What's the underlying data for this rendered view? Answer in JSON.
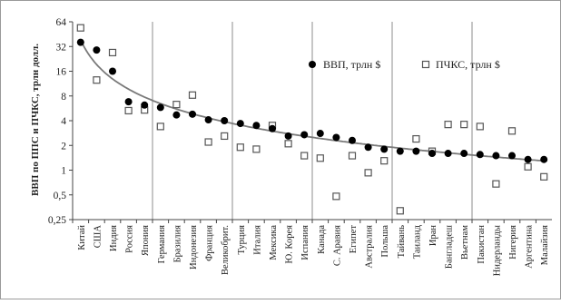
{
  "chart_data": {
    "type": "scatter",
    "ylabel": "ВВП по ППС и ПЧКС, трлн долл.",
    "y_scale": "log2",
    "ylim": [
      0.25,
      64
    ],
    "yticks": [
      0.25,
      0.5,
      1,
      2,
      4,
      8,
      16,
      32,
      64
    ],
    "ytick_labels": [
      "0,25",
      "0,5",
      "1",
      "2",
      "4",
      "8",
      "16",
      "32",
      "64"
    ],
    "grid": "vertical separators every 5 categories",
    "legend_position": "upper right",
    "categories": [
      "Китай",
      "США",
      "Индия",
      "Россия",
      "Япония",
      "Германия",
      "Бразилия",
      "Индонезия",
      "Франция",
      "Великобрит.",
      "Турция",
      "Италия",
      "Мексика",
      "Ю. Корея",
      "Испания",
      "Канада",
      "С. Аравия",
      "Египет",
      "Австралия",
      "Польша",
      "Тайвань",
      "Таиланд",
      "Иран",
      "Бангладеш",
      "Вьетнам",
      "Пакистан",
      "Нидерланды",
      "Нигерия",
      "Аргентина",
      "Малайзия"
    ],
    "series": [
      {
        "name": "ВВП, трлн $",
        "marker": "filled-circle",
        "color": "#000000",
        "values": [
          36,
          29,
          16,
          6.8,
          6.2,
          5.8,
          4.7,
          4.8,
          4.1,
          4.0,
          3.7,
          3.5,
          3.2,
          2.6,
          2.7,
          2.8,
          2.5,
          2.3,
          1.9,
          1.8,
          1.7,
          1.7,
          1.6,
          1.6,
          1.6,
          1.55,
          1.5,
          1.5,
          1.35,
          1.35
        ]
      },
      {
        "name": "ПЧКС, трлн $",
        "marker": "open-square",
        "color": "#555555",
        "values": [
          54,
          12.5,
          27,
          5.3,
          5.4,
          3.4,
          6.3,
          8.2,
          2.2,
          2.6,
          1.9,
          1.8,
          3.5,
          2.1,
          1.5,
          1.4,
          0.48,
          1.5,
          0.93,
          1.3,
          0.32,
          2.4,
          1.7,
          3.6,
          3.6,
          3.4,
          0.68,
          3.0,
          1.1,
          0.83
        ]
      }
    ]
  }
}
